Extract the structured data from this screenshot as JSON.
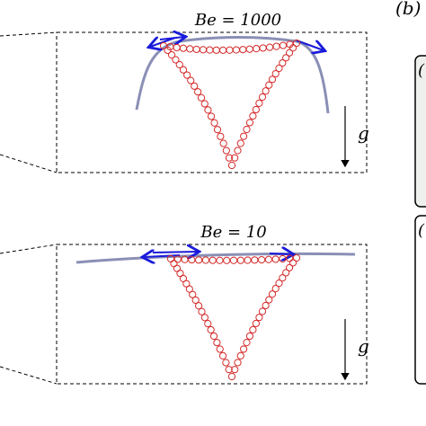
{
  "panels": [
    {
      "label": "Be = 1000",
      "gravity": "g"
    },
    {
      "label": "Be = 10",
      "gravity": "g"
    }
  ],
  "panel_b": {
    "label": "(b)",
    "sub_labels": [
      "(",
      "("
    ]
  }
}
